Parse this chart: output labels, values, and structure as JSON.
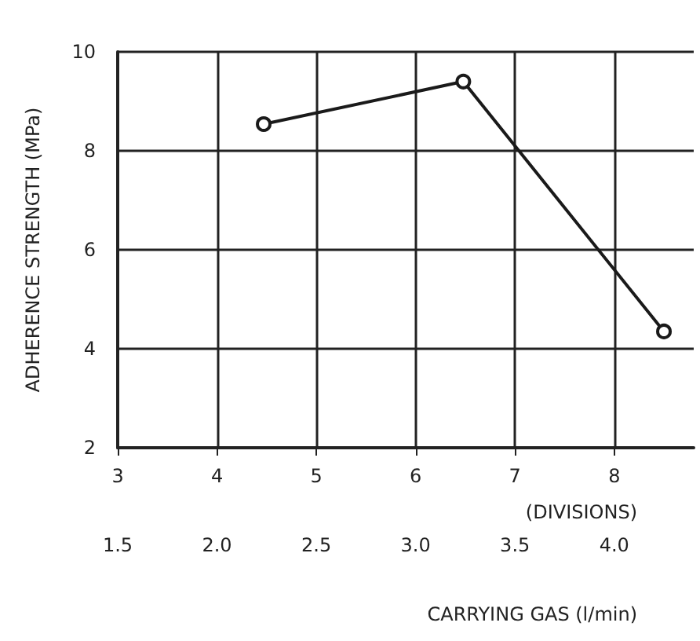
{
  "chart_data": {
    "type": "line",
    "xlabel": "(DIVISIONS)",
    "ylabel": "ADHERENCE STRENGTH (MPa)",
    "x2label": "CARRYING GAS (l/min)",
    "x": [
      4.47,
      6.48,
      8.5
    ],
    "series": [
      {
        "color": "#1a1a1a",
        "values": [
          8.54,
          9.4,
          4.35
        ]
      }
    ],
    "xlim": [
      3,
      8.8
    ],
    "xticks": [
      3,
      4,
      5,
      6,
      7,
      8
    ],
    "x2lim": [
      1.5,
      4.4
    ],
    "x2ticks": [
      1.5,
      {
        "value": 2,
        "label": "2.0"
      },
      2.5,
      {
        "value": 3,
        "label": "3.0"
      },
      3.5,
      {
        "value": 4,
        "label": "4.0"
      }
    ],
    "ylim": [
      2,
      10
    ],
    "yticks": [
      2,
      4,
      6,
      8,
      10
    ],
    "grid": true,
    "marker": "circle",
    "line_style": "solid"
  }
}
